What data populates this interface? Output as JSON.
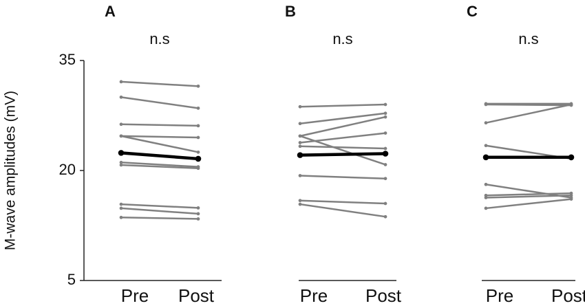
{
  "chart_data": [
    {
      "type": "line",
      "title": "A",
      "annotation": "n.s",
      "y_label": "M-wave amplitudes (mV)",
      "categories": [
        "Pre",
        "Post"
      ],
      "ylim": [
        5,
        35
      ],
      "yticks": [
        5,
        20,
        35
      ],
      "series": [
        {
          "color": "#808080",
          "linewidth": 2.5,
          "values": [
            32.1,
            31.5
          ]
        },
        {
          "color": "#808080",
          "linewidth": 2.5,
          "values": [
            30.0,
            28.5
          ]
        },
        {
          "color": "#808080",
          "linewidth": 2.5,
          "values": [
            26.3,
            26.1
          ]
        },
        {
          "color": "#808080",
          "linewidth": 2.5,
          "values": [
            24.7,
            24.5
          ]
        },
        {
          "color": "#808080",
          "linewidth": 2.5,
          "values": [
            24.7,
            22.5
          ]
        },
        {
          "color": "#808080",
          "linewidth": 2.5,
          "values": [
            21.1,
            20.5
          ]
        },
        {
          "color": "#808080",
          "linewidth": 2.5,
          "values": [
            20.75,
            20.3
          ]
        },
        {
          "color": "#808080",
          "linewidth": 2.5,
          "values": [
            15.4,
            14.9
          ]
        },
        {
          "color": "#808080",
          "linewidth": 2.5,
          "values": [
            14.85,
            14.1
          ]
        },
        {
          "color": "#808080",
          "linewidth": 2.5,
          "values": [
            13.6,
            13.4
          ]
        },
        {
          "color": "#000000",
          "linewidth": 4.5,
          "values": [
            22.4,
            21.6
          ]
        }
      ]
    },
    {
      "type": "line",
      "title": "B",
      "annotation": "n.s",
      "categories": [
        "Pre",
        "Post"
      ],
      "ylim": [
        5,
        35
      ],
      "series": [
        {
          "color": "#808080",
          "linewidth": 2.5,
          "values": [
            28.7,
            29.0
          ]
        },
        {
          "color": "#808080",
          "linewidth": 2.5,
          "values": [
            26.4,
            27.8
          ]
        },
        {
          "color": "#808080",
          "linewidth": 2.5,
          "values": [
            24.7,
            27.3
          ]
        },
        {
          "color": "#808080",
          "linewidth": 2.5,
          "values": [
            24.7,
            20.8
          ]
        },
        {
          "color": "#808080",
          "linewidth": 2.5,
          "values": [
            23.8,
            25.1
          ]
        },
        {
          "color": "#808080",
          "linewidth": 2.5,
          "values": [
            23.3,
            23.0
          ]
        },
        {
          "color": "#808080",
          "linewidth": 2.5,
          "values": [
            19.3,
            18.9
          ]
        },
        {
          "color": "#808080",
          "linewidth": 2.5,
          "values": [
            15.9,
            15.5
          ]
        },
        {
          "color": "#808080",
          "linewidth": 2.5,
          "values": [
            15.4,
            13.7
          ]
        },
        {
          "color": "#000000",
          "linewidth": 4.5,
          "values": [
            22.1,
            22.3
          ]
        }
      ]
    },
    {
      "type": "line",
      "title": "C",
      "annotation": "n.s",
      "categories": [
        "Pre",
        "Post"
      ],
      "ylim": [
        5,
        35
      ],
      "series": [
        {
          "color": "#808080",
          "linewidth": 2.5,
          "values": [
            29.1,
            29.1
          ]
        },
        {
          "color": "#808080",
          "linewidth": 2.5,
          "values": [
            29.0,
            28.9
          ]
        },
        {
          "color": "#808080",
          "linewidth": 2.5,
          "values": [
            26.5,
            29.0
          ]
        },
        {
          "color": "#808080",
          "linewidth": 2.5,
          "values": [
            23.4,
            21.6
          ]
        },
        {
          "color": "#808080",
          "linewidth": 2.5,
          "values": [
            18.1,
            16.3
          ]
        },
        {
          "color": "#808080",
          "linewidth": 2.5,
          "values": [
            16.6,
            16.9
          ]
        },
        {
          "color": "#808080",
          "linewidth": 2.5,
          "values": [
            16.3,
            16.6
          ]
        },
        {
          "color": "#808080",
          "linewidth": 2.5,
          "values": [
            14.85,
            16.1
          ]
        },
        {
          "color": "#000000",
          "linewidth": 4.5,
          "values": [
            21.8,
            21.8
          ]
        }
      ]
    }
  ]
}
